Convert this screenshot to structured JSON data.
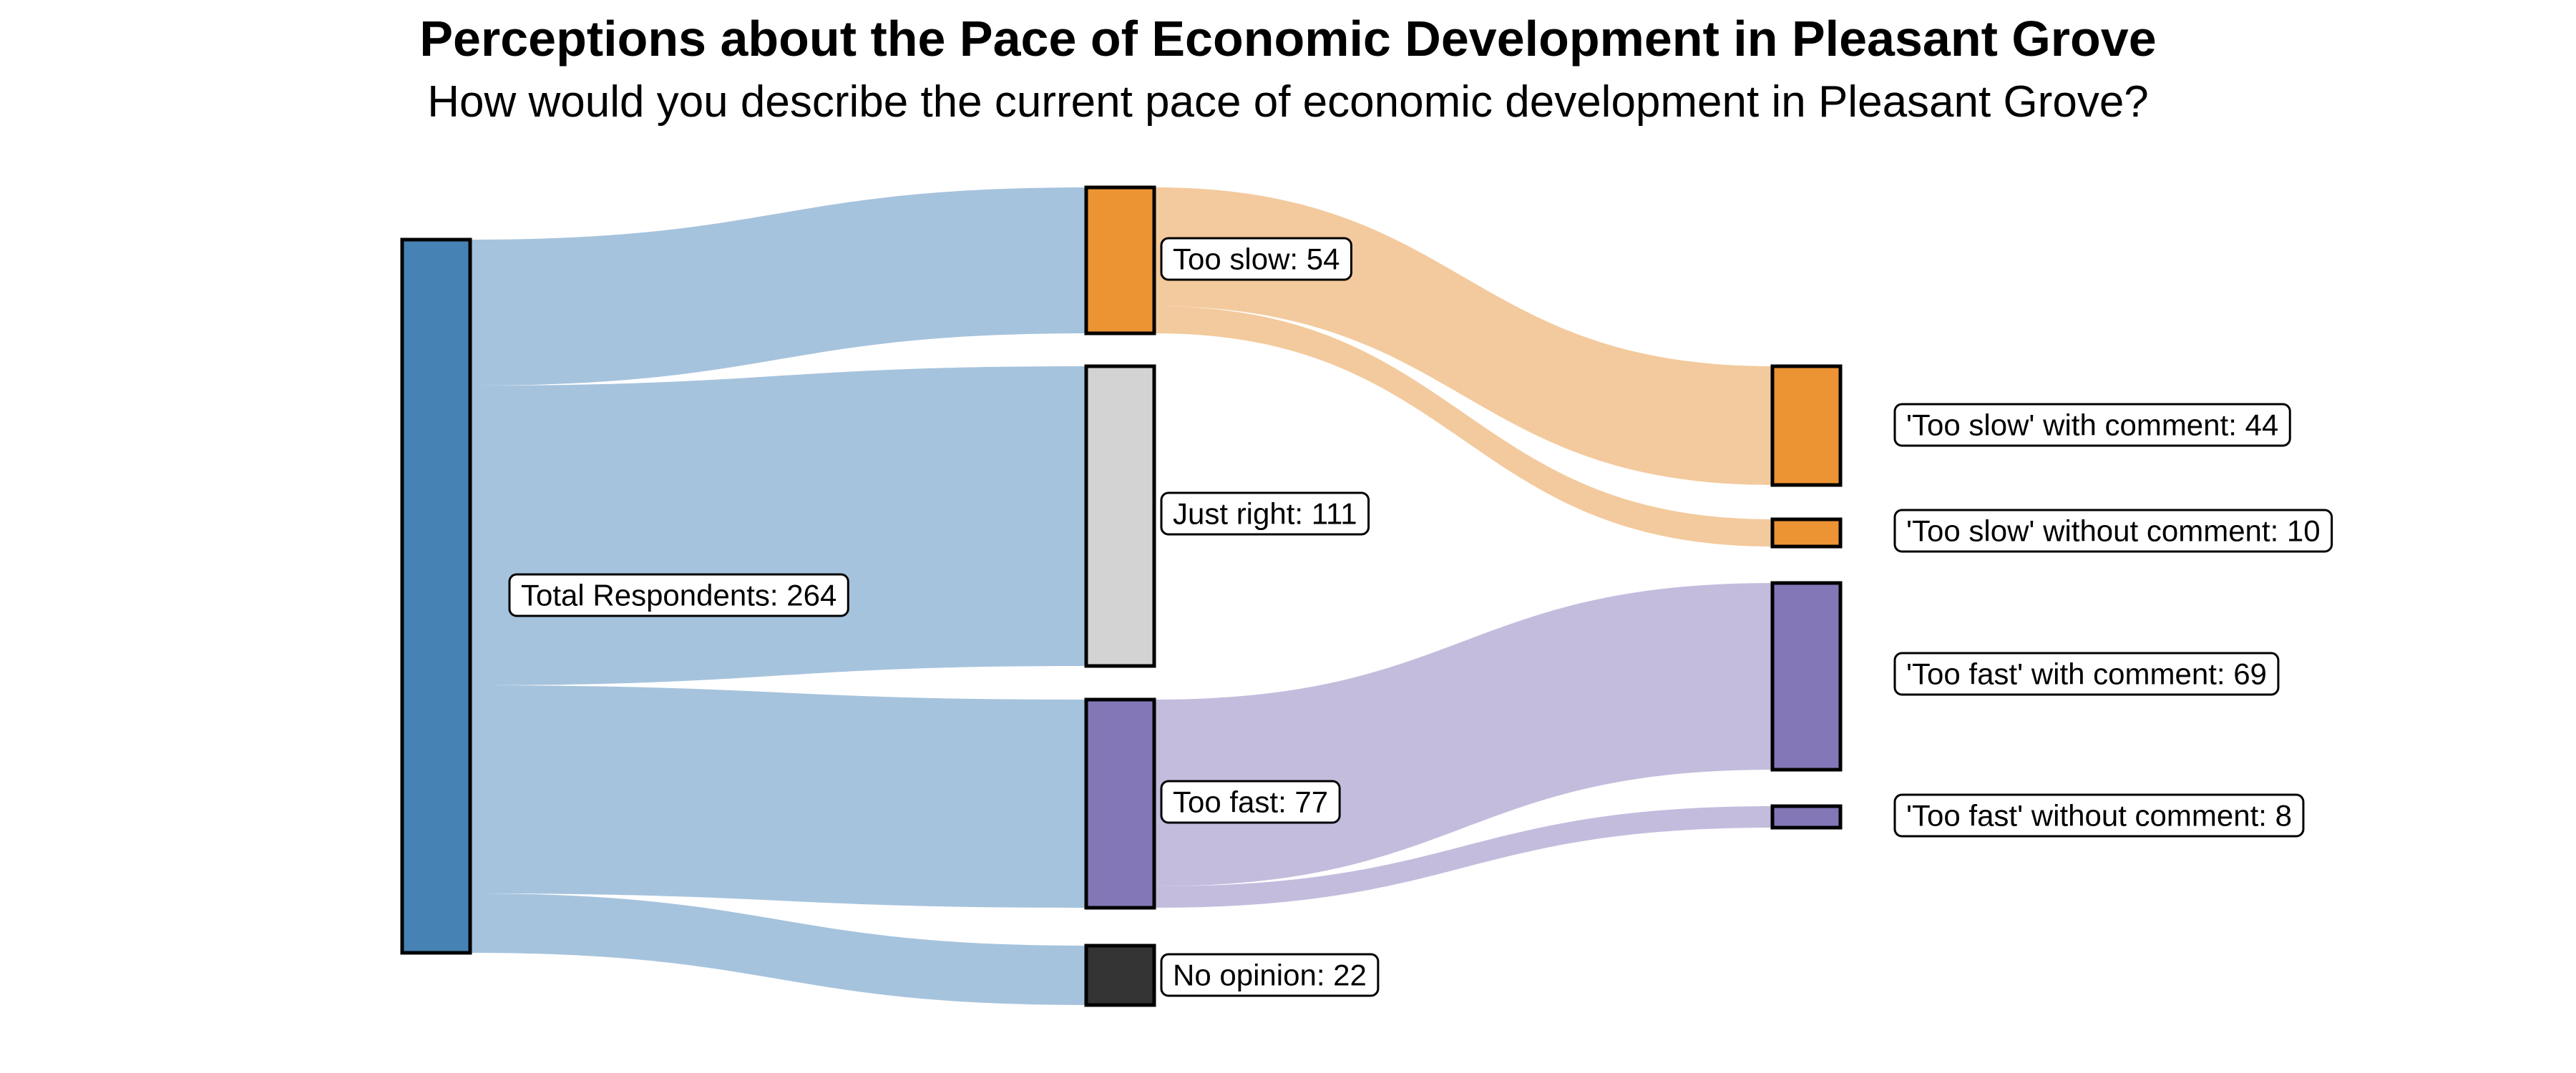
{
  "header": {
    "title": "Perceptions about the Pace of Economic Development in Pleasant Grove",
    "subtitle": "How would you describe the current pace of economic development in Pleasant Grove?"
  },
  "colors": {
    "background": "#ffffff",
    "node_total": "#4682B4",
    "node_too_slow": "#EC9333",
    "node_just_right": "#D3D3D3",
    "node_too_fast": "#8377B7",
    "node_no_opinion": "#333333",
    "link_blue": "#A6C3DD",
    "link_orange": "#F3CA9D",
    "link_purple": "#C4BCDD",
    "node_border": "#000000",
    "label_border": "#000000",
    "label_fill": "#ffffff"
  },
  "chart_data": {
    "type": "sankey",
    "title": "Perceptions about the Pace of Economic Development in Pleasant Grove",
    "subtitle": "How would you describe the current pace of economic development in Pleasant Grove?",
    "unit": "respondents",
    "total_respondents": 264,
    "nodes": [
      {
        "id": "total",
        "label": "Total Respondents: 264",
        "name": "Total Respondents",
        "value": 264,
        "column": 0,
        "color": "#4682B4"
      },
      {
        "id": "too_slow",
        "label": "Too slow: 54",
        "name": "Too slow",
        "value": 54,
        "column": 1,
        "color": "#EC9333"
      },
      {
        "id": "just_right",
        "label": "Just right: 111",
        "name": "Just right",
        "value": 111,
        "column": 1,
        "color": "#D3D3D3"
      },
      {
        "id": "too_fast",
        "label": "Too fast: 77",
        "name": "Too fast",
        "value": 77,
        "column": 1,
        "color": "#8377B7"
      },
      {
        "id": "no_opinion",
        "label": "No opinion: 22",
        "name": "No opinion",
        "value": 22,
        "column": 1,
        "color": "#333333"
      },
      {
        "id": "ts_with",
        "label": "'Too slow' with comment: 44",
        "name": "'Too slow' with comment",
        "value": 44,
        "column": 2,
        "color": "#EC9333"
      },
      {
        "id": "ts_without",
        "label": "'Too slow' without comment: 10",
        "name": "'Too slow' without comment",
        "value": 10,
        "column": 2,
        "color": "#EC9333"
      },
      {
        "id": "tf_with",
        "label": "'Too fast' with comment: 69",
        "name": "'Too fast' with comment",
        "value": 69,
        "column": 2,
        "color": "#8377B7"
      },
      {
        "id": "tf_without",
        "label": "'Too fast' without comment: 8",
        "name": "'Too fast' without comment",
        "value": 8,
        "column": 2,
        "color": "#8377B7"
      }
    ],
    "links": [
      {
        "source": "total",
        "target": "too_slow",
        "value": 54,
        "color": "#A6C3DD"
      },
      {
        "source": "total",
        "target": "just_right",
        "value": 111,
        "color": "#A6C3DD"
      },
      {
        "source": "total",
        "target": "too_fast",
        "value": 77,
        "color": "#A6C3DD"
      },
      {
        "source": "total",
        "target": "no_opinion",
        "value": 22,
        "color": "#A6C3DD"
      },
      {
        "source": "too_slow",
        "target": "ts_with",
        "value": 44,
        "color": "#F3CA9D"
      },
      {
        "source": "too_slow",
        "target": "ts_without",
        "value": 10,
        "color": "#F3CA9D"
      },
      {
        "source": "too_fast",
        "target": "tf_with",
        "value": 69,
        "color": "#C4BCDD"
      },
      {
        "source": "too_fast",
        "target": "tf_without",
        "value": 8,
        "color": "#C4BCDD"
      }
    ],
    "legend": null,
    "grid": false
  }
}
